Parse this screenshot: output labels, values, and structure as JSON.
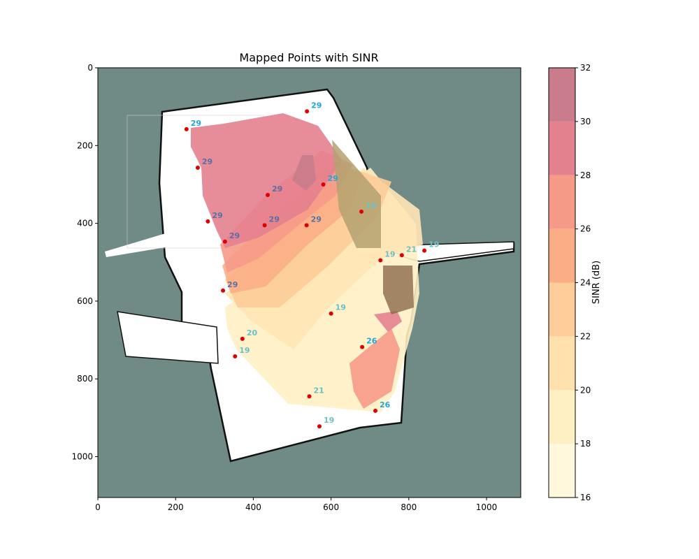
{
  "chart_data": {
    "type": "scatter",
    "title": "Mapped Points with SINR",
    "xlabel": "",
    "ylabel": "",
    "xlim": [
      0,
      1088
    ],
    "ylim": [
      1105,
      0
    ],
    "y_inverted": true,
    "xticks": [
      0,
      200,
      400,
      600,
      800,
      1000
    ],
    "yticks": [
      0,
      200,
      400,
      600,
      800,
      1000
    ],
    "grid": false,
    "background": "occupancy map image with contour overlay",
    "points": [
      {
        "x": 228,
        "y": 158,
        "sinr": 29
      },
      {
        "x": 538,
        "y": 112,
        "sinr": 29
      },
      {
        "x": 257,
        "y": 257,
        "sinr": 29
      },
      {
        "x": 437,
        "y": 327,
        "sinr": 29
      },
      {
        "x": 580,
        "y": 300,
        "sinr": 29
      },
      {
        "x": 283,
        "y": 395,
        "sinr": 29
      },
      {
        "x": 429,
        "y": 405,
        "sinr": 29
      },
      {
        "x": 537,
        "y": 405,
        "sinr": 29
      },
      {
        "x": 327,
        "y": 447,
        "sinr": 29
      },
      {
        "x": 322,
        "y": 573,
        "sinr": 29
      },
      {
        "x": 678,
        "y": 370,
        "sinr": 19
      },
      {
        "x": 727,
        "y": 495,
        "sinr": 19
      },
      {
        "x": 782,
        "y": 482,
        "sinr": 21
      },
      {
        "x": 840,
        "y": 470,
        "sinr": 19
      },
      {
        "x": 600,
        "y": 632,
        "sinr": 19
      },
      {
        "x": 372,
        "y": 697,
        "sinr": 20
      },
      {
        "x": 353,
        "y": 742,
        "sinr": 19
      },
      {
        "x": 680,
        "y": 718,
        "sinr": 26
      },
      {
        "x": 544,
        "y": 845,
        "sinr": 21
      },
      {
        "x": 714,
        "y": 882,
        "sinr": 26
      },
      {
        "x": 570,
        "y": 922,
        "sinr": 19
      }
    ],
    "colorbar": {
      "label": "SINR (dB)",
      "min": 16,
      "max": 32,
      "ticks": [
        16,
        18,
        20,
        22,
        24,
        26,
        28,
        30,
        32
      ],
      "levels": [
        16,
        18,
        20,
        22,
        24,
        26,
        28,
        30,
        32
      ],
      "colors": [
        "#fff8dc",
        "#fff0c4",
        "#ffe1ae",
        "#fdcc98",
        "#fbae86",
        "#f69a88",
        "#e4818e",
        "#c87c8c"
      ]
    }
  }
}
